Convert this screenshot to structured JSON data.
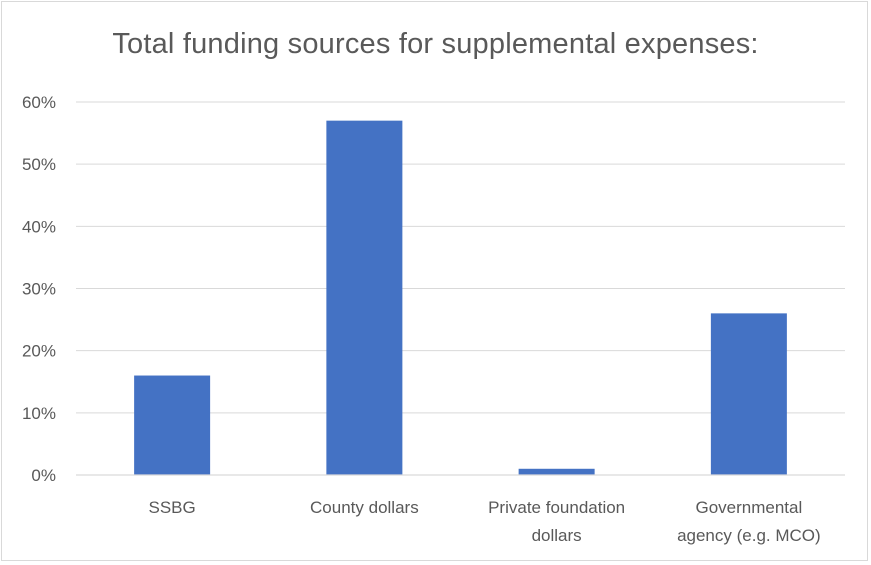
{
  "chart_data": {
    "type": "bar",
    "title": "Total funding sources for supplemental expenses:",
    "categories": [
      [
        "SSBG"
      ],
      [
        "County dollars"
      ],
      [
        "Private foundation",
        "dollars"
      ],
      [
        "Governmental",
        "agency (e.g. MCO)"
      ]
    ],
    "values": [
      16,
      57,
      1,
      26
    ],
    "ylim": [
      0,
      60
    ],
    "yticks": [
      0,
      10,
      20,
      30,
      40,
      50,
      60
    ],
    "ytick_labels": [
      "0%",
      "10%",
      "20%",
      "30%",
      "40%",
      "50%",
      "60%"
    ],
    "xlabel": "",
    "ylabel": "",
    "grid": true,
    "legend": "none",
    "bar_color": "#4472c4",
    "grid_color": "#d9d9d9",
    "text_color": "#595959"
  }
}
